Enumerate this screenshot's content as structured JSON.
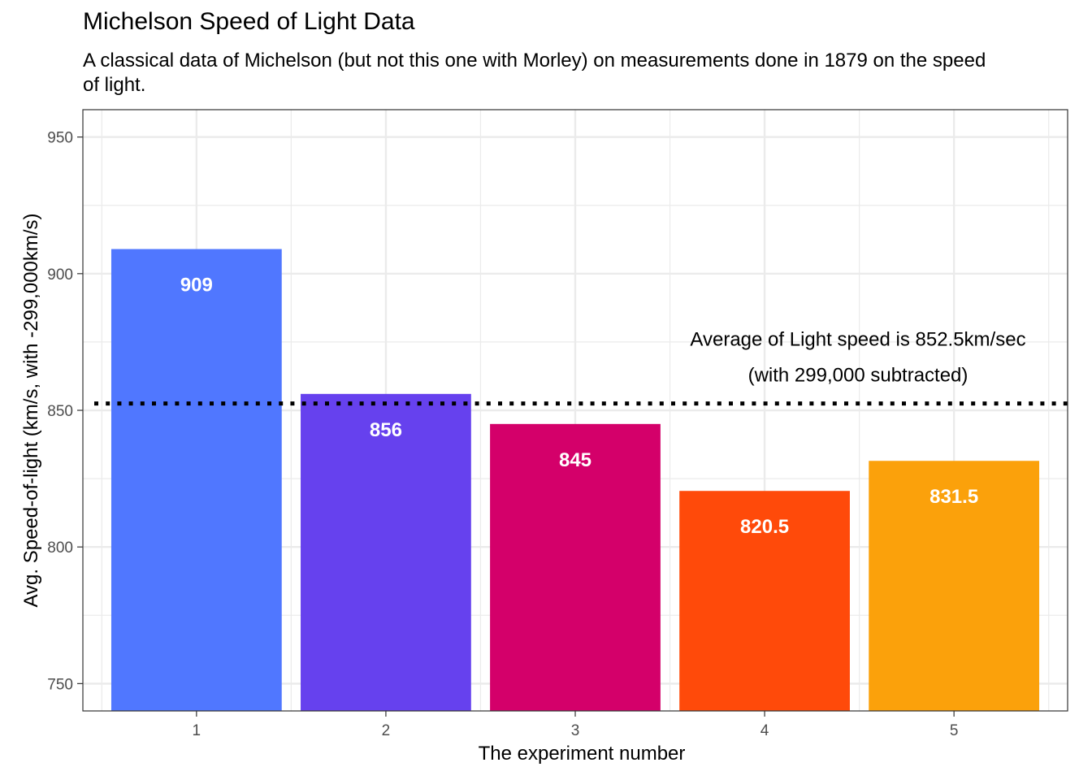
{
  "chart_data": {
    "type": "bar",
    "title": "Michelson Speed of Light Data",
    "subtitle": "A classical data of Michelson (but not this one with Morley) on measurements done in 1879 on the speed of light.",
    "xlabel": "The experiment number",
    "ylabel": "Avg. Speed-of-light (km/s, with -299,000km/s)",
    "categories": [
      "1",
      "2",
      "3",
      "4",
      "5"
    ],
    "values": [
      909,
      856,
      845,
      820.5,
      831.5
    ],
    "value_labels": [
      "909",
      "856",
      "845",
      "820.5",
      "831.5"
    ],
    "colors": [
      "#5077FF",
      "#6641EE",
      "#D4006A",
      "#FF4A0A",
      "#FBA10B"
    ],
    "ylim": [
      740,
      960
    ],
    "yticks": [
      750,
      800,
      850,
      900,
      950
    ],
    "grid": true,
    "legend": "none",
    "reference_line": {
      "value": 852.5,
      "style": "dotted",
      "color": "#000000",
      "label_line1": "Average of Light speed is 852.5km/sec",
      "label_line2": "(with 299,000 subtracted)"
    }
  }
}
